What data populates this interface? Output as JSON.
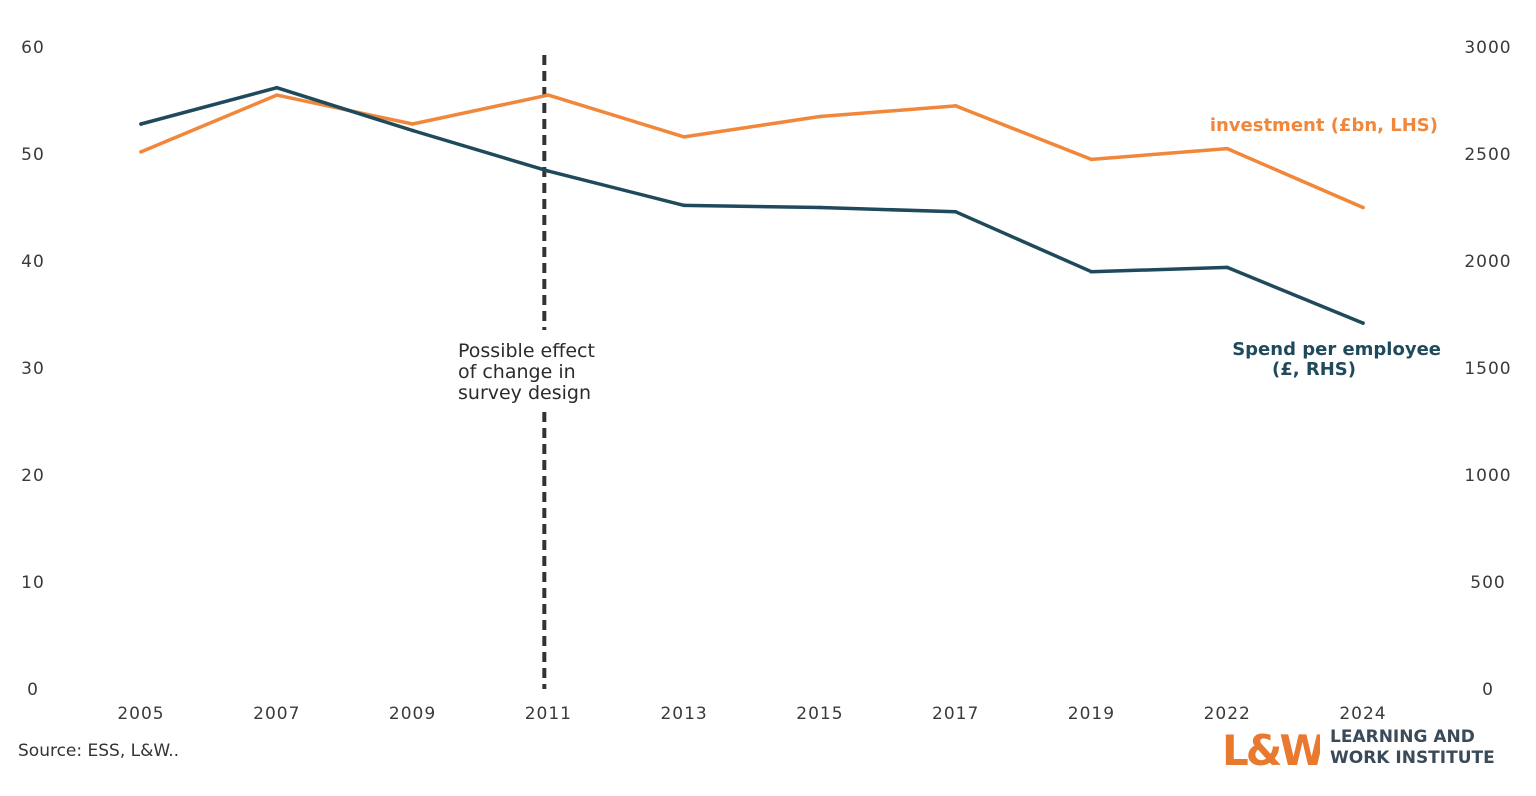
{
  "chart_data": {
    "type": "line",
    "categories": [
      "2005",
      "2007",
      "2009",
      "2011",
      "2013",
      "2015",
      "2017",
      "2019",
      "2022",
      "2024"
    ],
    "series": [
      {
        "name": "investment (£bn, LHS)",
        "axis": "left",
        "color": "#f0873a",
        "values": [
          50.2,
          55.5,
          52.8,
          55.5,
          51.6,
          53.5,
          54.5,
          49.5,
          50.5,
          45.0
        ]
      },
      {
        "name": "Spend per employee (£, RHS)",
        "label_lines": [
          "Spend per employee",
          "(£, RHS)"
        ],
        "axis": "right",
        "color": "#1f4a5c",
        "values": [
          2640,
          2810,
          2610,
          2420,
          2260,
          2250,
          2230,
          1950,
          1970,
          1710
        ]
      }
    ],
    "y_left": {
      "min": 0,
      "max": 60,
      "ticks": [
        "0",
        "10",
        "20",
        "30",
        "40",
        "50",
        "60"
      ]
    },
    "y_right": {
      "min": 0,
      "max": 3000,
      "ticks": [
        "0",
        "500",
        "1000",
        "1500",
        "2000",
        "2500",
        "3000"
      ]
    },
    "grid": false,
    "annotation": {
      "at_category": "2011",
      "lines": [
        "Possible effect",
        "of change in",
        "survey design"
      ],
      "line_style": "dashed"
    }
  },
  "source": "Source: ESS, L&W..",
  "logo": {
    "mark": "L&W",
    "line1": "LEARNING AND",
    "line2": "WORK INSTITUTE",
    "color": "#e8792e"
  }
}
